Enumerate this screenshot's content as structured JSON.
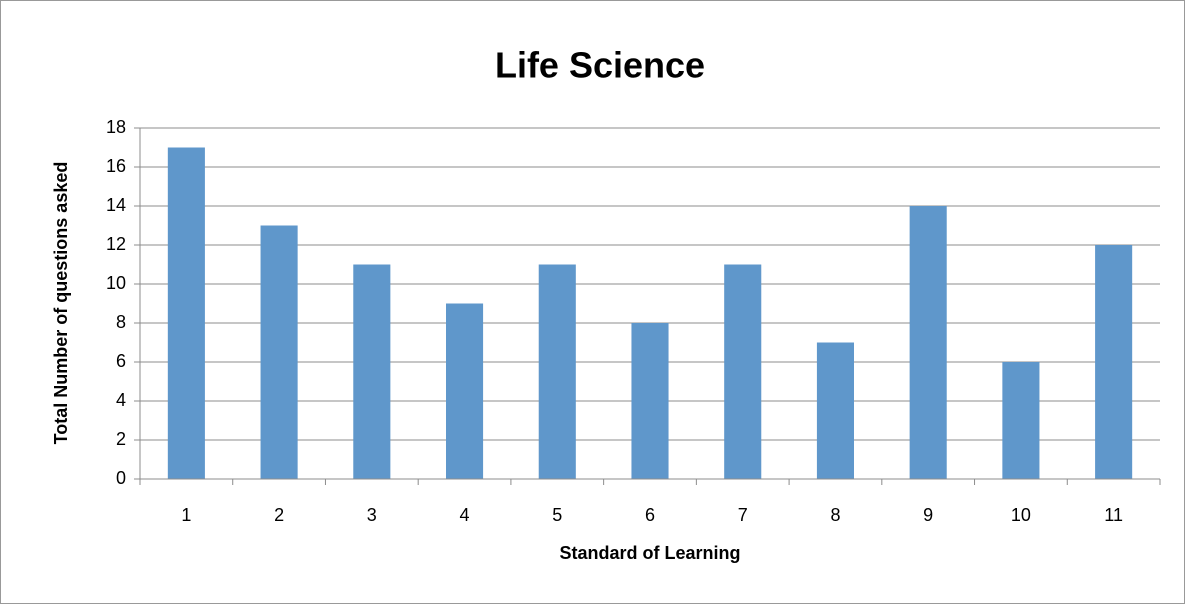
{
  "chart_data": {
    "type": "bar",
    "title": "Life Science",
    "x_label": "Standard of Learning",
    "y_label": "Total Number of questions asked",
    "categories": [
      "1",
      "2",
      "3",
      "4",
      "5",
      "6",
      "7",
      "8",
      "9",
      "10",
      "11"
    ],
    "values": [
      17,
      13,
      11,
      9,
      11,
      8,
      11,
      7,
      14,
      6,
      12
    ],
    "color": "#5f97cb",
    "ylim": [
      0,
      18
    ],
    "yticks": [
      0,
      2,
      4,
      6,
      8,
      10,
      12,
      14,
      16,
      18
    ],
    "grid": true
  }
}
